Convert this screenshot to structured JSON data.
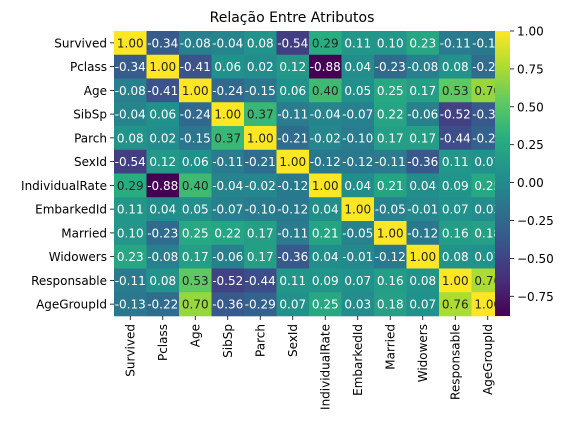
{
  "chart_data": {
    "type": "heatmap",
    "title": "Relação Entre Atributos",
    "xlabel": "",
    "ylabel": "",
    "colormap": "viridis",
    "vmin": -0.88,
    "vmax": 1.0,
    "labels": [
      "Survived",
      "Pclass",
      "Age",
      "SibSp",
      "Parch",
      "SexId",
      "IndividualRate",
      "EmbarkedId",
      "Married",
      "Widowers",
      "Responsable",
      "AgeGroupId"
    ],
    "matrix": [
      [
        1.0,
        -0.34,
        -0.08,
        -0.04,
        0.08,
        -0.54,
        0.29,
        0.11,
        0.1,
        0.23,
        -0.11,
        -0.13
      ],
      [
        -0.34,
        1.0,
        -0.41,
        0.06,
        0.02,
        0.12,
        -0.88,
        0.04,
        -0.23,
        -0.08,
        0.08,
        -0.22
      ],
      [
        -0.08,
        -0.41,
        1.0,
        -0.24,
        -0.15,
        0.06,
        0.4,
        0.05,
        0.25,
        0.17,
        0.53,
        0.7
      ],
      [
        -0.04,
        0.06,
        -0.24,
        1.0,
        0.37,
        -0.11,
        -0.04,
        -0.07,
        0.22,
        -0.06,
        -0.52,
        -0.36
      ],
      [
        0.08,
        0.02,
        -0.15,
        0.37,
        1.0,
        -0.21,
        -0.02,
        -0.1,
        0.17,
        0.17,
        -0.44,
        -0.29
      ],
      [
        -0.54,
        0.12,
        0.06,
        -0.11,
        -0.21,
        1.0,
        -0.12,
        -0.12,
        -0.11,
        -0.36,
        0.11,
        0.07
      ],
      [
        0.29,
        -0.88,
        0.4,
        -0.04,
        -0.02,
        -0.12,
        1.0,
        0.04,
        0.21,
        0.04,
        0.09,
        0.25
      ],
      [
        0.11,
        0.04,
        0.05,
        -0.07,
        -0.1,
        -0.12,
        0.04,
        1.0,
        -0.05,
        -0.01,
        0.07,
        0.03
      ],
      [
        0.1,
        -0.23,
        0.25,
        0.22,
        0.17,
        -0.11,
        0.21,
        -0.05,
        1.0,
        -0.12,
        0.16,
        0.18
      ],
      [
        0.23,
        -0.08,
        0.17,
        -0.06,
        0.17,
        -0.36,
        0.04,
        -0.01,
        -0.12,
        1.0,
        0.08,
        0.07
      ],
      [
        -0.11,
        0.08,
        0.53,
        -0.52,
        -0.44,
        0.11,
        0.09,
        0.07,
        0.16,
        0.08,
        1.0,
        0.76
      ],
      [
        -0.13,
        -0.22,
        0.7,
        -0.36,
        -0.29,
        0.07,
        0.25,
        0.03,
        0.18,
        0.07,
        0.76,
        1.0
      ]
    ],
    "colorbar_ticks": [
      1.0,
      0.75,
      0.5,
      0.25,
      0.0,
      -0.25,
      -0.5,
      -0.75
    ]
  }
}
